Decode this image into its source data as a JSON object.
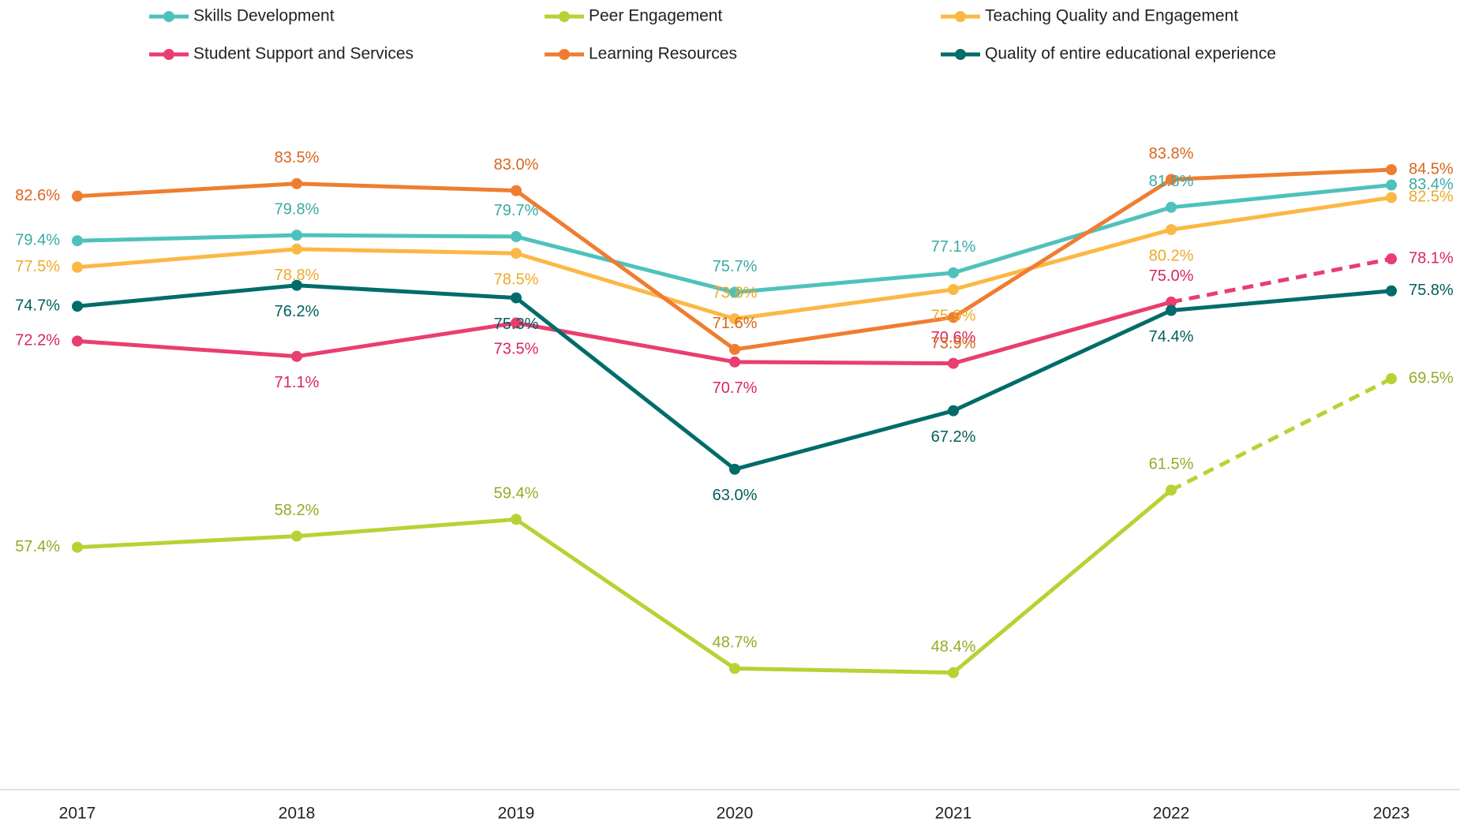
{
  "chart_data": {
    "type": "line",
    "categories": [
      "2017",
      "2018",
      "2019",
      "2020",
      "2021",
      "2022",
      "2023"
    ],
    "ylim": [
      40,
      90
    ],
    "last_segment_style": "dashed",
    "series": [
      {
        "name": "Skills Development",
        "color": "#4fc1bd",
        "label_color": "#3aa9a5",
        "values": [
          79.4,
          79.8,
          79.7,
          75.7,
          77.1,
          81.8,
          83.4
        ],
        "value_labels": [
          "79.4%",
          "79.8%",
          "79.7%",
          "75.7%",
          "77.1%",
          "81.8%",
          "83.4%"
        ],
        "dashed_last": false
      },
      {
        "name": "Peer Engagement",
        "color": "#b7d234",
        "label_color": "#95ab25",
        "values": [
          57.4,
          58.2,
          59.4,
          48.7,
          48.4,
          61.5,
          69.5
        ],
        "value_labels": [
          "57.4%",
          "58.2%",
          "59.4%",
          "48.7%",
          "48.4%",
          "61.5%",
          "69.5%"
        ],
        "dashed_last": true
      },
      {
        "name": "Teaching Quality and Engagement",
        "color": "#fbb845",
        "label_color": "#eea928",
        "values": [
          77.5,
          78.8,
          78.5,
          73.8,
          75.9,
          80.2,
          82.5
        ],
        "value_labels": [
          "77.5%",
          "78.8%",
          "78.5%",
          "73.8%",
          "75.9%",
          "80.2%",
          "82.5%"
        ],
        "dashed_last": false
      },
      {
        "name": "Student Support and Services",
        "color": "#e93e6f",
        "label_color": "#d8275a",
        "values": [
          72.2,
          71.1,
          73.5,
          70.7,
          70.6,
          75.0,
          78.1
        ],
        "value_labels": [
          "72.2%",
          "71.1%",
          "73.5%",
          "70.7%",
          "70.6%",
          "75.0%",
          "78.1%"
        ],
        "dashed_last": true
      },
      {
        "name": "Learning Resources",
        "color": "#ef7d31",
        "label_color": "#d9661d",
        "values": [
          82.6,
          83.5,
          83.0,
          71.6,
          73.9,
          83.8,
          84.5
        ],
        "value_labels": [
          "82.6%",
          "83.5%",
          "83.0%",
          "71.6%",
          "73.9%",
          "83.8%",
          "84.5%"
        ],
        "dashed_last": false
      },
      {
        "name": "Quality of entire educational experience",
        "color": "#006c6a",
        "label_color": "#005e5c",
        "values": [
          74.7,
          76.2,
          75.3,
          63.0,
          67.2,
          74.4,
          75.8
        ],
        "value_labels": [
          "74.7%",
          "76.2%",
          "75.3%",
          "63.0%",
          "67.2%",
          "74.4%",
          "75.8%"
        ],
        "dashed_last": false
      }
    ]
  }
}
